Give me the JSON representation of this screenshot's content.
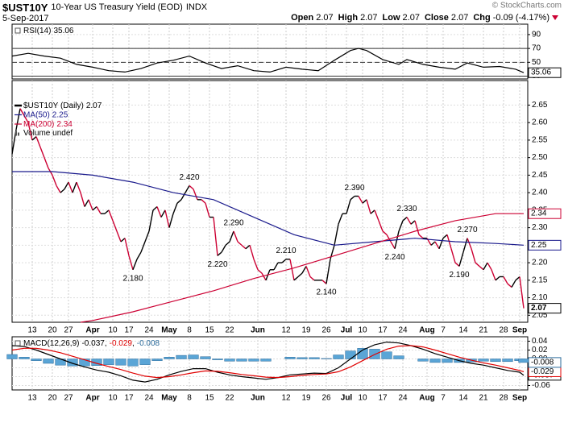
{
  "header": {
    "symbol": "$UST10Y",
    "name": "10-Year US Treasury Yield (EOD)",
    "exchange": "INDX",
    "date": "5-Sep-2017",
    "copyright": "© StockCharts.com",
    "quote": [
      {
        "label": "Open",
        "value": 2.07
      },
      {
        "label": "High",
        "value": 2.07
      },
      {
        "label": "Low",
        "value": 2.07
      },
      {
        "label": "Close",
        "value": 2.07
      },
      {
        "label": "Chg",
        "value": -0.09
      }
    ],
    "change_pct": "(-4.17%)"
  },
  "chart_data": [
    {
      "type": "line",
      "xlim": [
        0,
        128
      ],
      "ylim": [
        26,
        105
      ],
      "yticks": [
        90,
        70,
        50,
        30
      ],
      "levels": [
        70,
        50,
        30
      ],
      "grid": true,
      "series": [
        {
          "name": "RSI(14)",
          "color": "#000000",
          "x": [
            0,
            4,
            8,
            12,
            16,
            20,
            24,
            28,
            32,
            36,
            40,
            44,
            48,
            52,
            56,
            60,
            64,
            68,
            72,
            76,
            80,
            84,
            86,
            88,
            92,
            96,
            98,
            102,
            106,
            110,
            113,
            117,
            121,
            125,
            127
          ],
          "values": [
            59,
            63,
            59,
            56,
            47,
            43,
            38,
            36,
            41,
            49,
            53,
            59,
            49,
            41,
            45,
            38,
            36,
            43,
            40,
            38,
            53,
            67,
            70,
            67,
            54,
            47,
            54,
            47,
            43,
            40,
            49,
            43,
            44,
            40,
            35.06
          ]
        }
      ]
    },
    {
      "type": "line",
      "xlim": [
        0,
        128
      ],
      "ylim": [
        2.03,
        2.72
      ],
      "grid": true,
      "yticks": [
        2.65,
        {
          "value": 2.6,
          "label": "2.60"
        },
        2.55,
        {
          "value": 2.5,
          "label": "2.50"
        },
        2.45,
        {
          "value": 2.4,
          "label": "2.40"
        },
        2.35,
        {
          "value": 2.3,
          "label": "2.30"
        },
        2.25,
        {
          "value": 2.2,
          "label": "2.20"
        },
        2.15,
        {
          "value": 2.1,
          "label": "2.10"
        },
        2.05
      ],
      "xticks": [
        {
          "value": 5,
          "label": "13"
        },
        {
          "value": 10,
          "label": "20"
        },
        {
          "value": 14,
          "label": "27"
        },
        {
          "value": 20,
          "label": "Apr"
        },
        {
          "value": 25,
          "label": "10"
        },
        {
          "value": 29,
          "label": "17"
        },
        {
          "value": 34,
          "label": "24"
        },
        {
          "value": 39,
          "label": "May"
        },
        {
          "value": 44,
          "label": "8"
        },
        {
          "value": 49,
          "label": "15"
        },
        {
          "value": 54,
          "label": "22"
        },
        {
          "value": 61,
          "label": "Jun"
        },
        {
          "value": 68,
          "label": "12"
        },
        {
          "value": 73,
          "label": "19"
        },
        {
          "value": 78,
          "label": "26"
        },
        {
          "value": 83,
          "label": "Jul"
        },
        {
          "value": 87,
          "label": "10"
        },
        {
          "value": 92,
          "label": "17"
        },
        {
          "value": 97,
          "label": "24"
        },
        {
          "value": 103,
          "label": "Aug"
        },
        {
          "value": 107,
          "label": "7"
        },
        {
          "value": 112,
          "label": "14"
        },
        {
          "value": 117,
          "label": "21"
        },
        {
          "value": 122,
          "label": "28"
        },
        {
          "value": 126,
          "label": "Sep"
        }
      ],
      "note": "Volume undef",
      "series": [
        {
          "name": "$UST10Y (Daily)",
          "color": "#000000",
          "down_color": "#cc0033",
          "x": [
            0,
            1,
            2,
            3,
            4,
            5,
            6,
            7,
            8,
            9,
            10,
            11,
            12,
            13,
            14,
            15,
            16,
            17,
            18,
            19,
            20,
            21,
            22,
            23,
            24,
            25,
            26,
            27,
            28,
            29,
            30,
            31,
            32,
            33,
            34,
            35,
            36,
            37,
            38,
            39,
            40,
            41,
            42,
            43,
            44,
            45,
            46,
            47,
            48,
            49,
            50,
            51,
            52,
            53,
            54,
            55,
            56,
            57,
            58,
            59,
            60,
            61,
            62,
            63,
            64,
            65,
            66,
            67,
            68,
            69,
            70,
            71,
            72,
            73,
            74,
            75,
            76,
            77,
            78,
            79,
            80,
            81,
            82,
            83,
            84,
            85,
            86,
            87,
            88,
            89,
            90,
            91,
            92,
            93,
            94,
            95,
            96,
            97,
            98,
            99,
            100,
            101,
            102,
            103,
            104,
            105,
            106,
            107,
            108,
            109,
            110,
            111,
            112,
            113,
            114,
            115,
            116,
            117,
            118,
            119,
            120,
            121,
            122,
            123,
            124,
            125,
            126,
            127
          ],
          "values": [
            2.51,
            2.58,
            2.64,
            2.62,
            2.6,
            2.55,
            2.56,
            2.53,
            2.5,
            2.47,
            2.45,
            2.42,
            2.4,
            2.41,
            2.43,
            2.4,
            2.43,
            2.4,
            2.36,
            2.38,
            2.35,
            2.36,
            2.34,
            2.34,
            2.35,
            2.32,
            2.29,
            2.26,
            2.27,
            2.22,
            2.18,
            2.21,
            2.23,
            2.26,
            2.29,
            2.35,
            2.36,
            2.33,
            2.35,
            2.3,
            2.34,
            2.37,
            2.38,
            2.4,
            2.42,
            2.41,
            2.38,
            2.38,
            2.37,
            2.33,
            2.33,
            2.22,
            2.23,
            2.25,
            2.26,
            2.29,
            2.26,
            2.25,
            2.24,
            2.25,
            2.21,
            2.18,
            2.17,
            2.15,
            2.18,
            2.18,
            2.2,
            2.2,
            2.21,
            2.21,
            2.15,
            2.16,
            2.17,
            2.19,
            2.16,
            2.15,
            2.15,
            2.15,
            2.14,
            2.21,
            2.25,
            2.31,
            2.34,
            2.34,
            2.38,
            2.39,
            2.39,
            2.37,
            2.38,
            2.34,
            2.35,
            2.32,
            2.29,
            2.28,
            2.26,
            2.24,
            2.29,
            2.32,
            2.33,
            2.31,
            2.32,
            2.28,
            2.27,
            2.27,
            2.25,
            2.26,
            2.24,
            2.27,
            2.28,
            2.24,
            2.2,
            2.19,
            2.23,
            2.27,
            2.24,
            2.2,
            2.19,
            2.18,
            2.2,
            2.18,
            2.15,
            2.16,
            2.16,
            2.14,
            2.13,
            2.15,
            2.16,
            2.07
          ]
        },
        {
          "name": "MA(50)",
          "color": "#1a1a8c",
          "x": [
            0,
            10,
            20,
            30,
            40,
            50,
            60,
            70,
            80,
            90,
            100,
            110,
            120,
            127
          ],
          "values": [
            2.46,
            2.46,
            2.45,
            2.43,
            2.4,
            2.38,
            2.33,
            2.28,
            2.25,
            2.26,
            2.27,
            2.26,
            2.255,
            2.25
          ]
        },
        {
          "name": "MA(200)",
          "color": "#cc0033",
          "x": [
            17,
            20,
            30,
            40,
            50,
            60,
            70,
            80,
            90,
            100,
            110,
            120,
            127
          ],
          "values": [
            2.03,
            2.035,
            2.06,
            2.09,
            2.12,
            2.155,
            2.185,
            2.22,
            2.255,
            2.29,
            2.32,
            2.34,
            2.34
          ]
        }
      ],
      "annotations": [
        {
          "x": 44,
          "y": 2.42,
          "label": "2.420"
        },
        {
          "x": 30,
          "y": 2.18,
          "label": "2.180"
        },
        {
          "x": 55,
          "y": 2.29,
          "label": "2.290"
        },
        {
          "x": 51,
          "y": 2.22,
          "label": "2.220"
        },
        {
          "x": 68,
          "y": 2.21,
          "label": "2.210"
        },
        {
          "x": 78,
          "y": 2.14,
          "label": "2.140"
        },
        {
          "x": 85,
          "y": 2.39,
          "label": "2.390"
        },
        {
          "x": 98,
          "y": 2.33,
          "label": "2.330"
        },
        {
          "x": 95,
          "y": 2.24,
          "label": "2.240"
        },
        {
          "x": 113,
          "y": 2.27,
          "label": "2.270"
        },
        {
          "x": 111,
          "y": 2.19,
          "label": "2.190"
        }
      ]
    },
    {
      "type": "combo",
      "label": "MACD(12,26,9)",
      "separator": ",",
      "xlim": [
        0,
        128
      ],
      "ylim": [
        -0.07,
        0.05
      ],
      "grid": true,
      "yticks": [
        0.04,
        0.02,
        {
          "value": 0,
          "label": "0.00"
        },
        -0.02,
        -0.04,
        -0.06
      ],
      "xticks": [
        {
          "value": 5,
          "label": "13"
        },
        {
          "value": 10,
          "label": "20"
        },
        {
          "value": 14,
          "label": "27"
        },
        {
          "value": 20,
          "label": "Apr"
        },
        {
          "value": 25,
          "label": "10"
        },
        {
          "value": 29,
          "label": "17"
        },
        {
          "value": 34,
          "label": "24"
        },
        {
          "value": 39,
          "label": "May"
        },
        {
          "value": 44,
          "label": "8"
        },
        {
          "value": 49,
          "label": "15"
        },
        {
          "value": 54,
          "label": "22"
        },
        {
          "value": 61,
          "label": "Jun"
        },
        {
          "value": 68,
          "label": "12"
        },
        {
          "value": 73,
          "label": "19"
        },
        {
          "value": 78,
          "label": "26"
        },
        {
          "value": 83,
          "label": "Jul"
        },
        {
          "value": 87,
          "label": "10"
        },
        {
          "value": 92,
          "label": "17"
        },
        {
          "value": 97,
          "label": "24"
        },
        {
          "value": 103,
          "label": "Aug"
        },
        {
          "value": 107,
          "label": "7"
        },
        {
          "value": 112,
          "label": "14"
        },
        {
          "value": 117,
          "label": "21"
        },
        {
          "value": 122,
          "label": "28"
        },
        {
          "value": 126,
          "label": "Sep"
        }
      ],
      "x": [
        0,
        3,
        6,
        9,
        12,
        15,
        18,
        21,
        24,
        27,
        30,
        33,
        36,
        39,
        42,
        45,
        48,
        51,
        54,
        57,
        60,
        63,
        66,
        69,
        72,
        75,
        78,
        81,
        84,
        87,
        90,
        93,
        96,
        99,
        102,
        105,
        108,
        111,
        114,
        117,
        120,
        123,
        126,
        127
      ],
      "series": [
        {
          "mark": "line",
          "color": "#000000",
          "values": [
            0.03,
            0.028,
            0.02,
            0.01,
            0.0,
            -0.01,
            -0.018,
            -0.025,
            -0.03,
            -0.038,
            -0.048,
            -0.052,
            -0.046,
            -0.036,
            -0.028,
            -0.022,
            -0.022,
            -0.03,
            -0.036,
            -0.04,
            -0.043,
            -0.046,
            -0.042,
            -0.036,
            -0.034,
            -0.032,
            -0.033,
            -0.02,
            0.0,
            0.02,
            0.032,
            0.038,
            0.036,
            0.03,
            0.022,
            0.012,
            0.004,
            -0.004,
            -0.01,
            -0.014,
            -0.02,
            -0.026,
            -0.03,
            -0.037
          ]
        },
        {
          "mark": "line",
          "color": "#e00000",
          "values": [
            0.02,
            0.024,
            0.024,
            0.02,
            0.014,
            0.006,
            -0.002,
            -0.01,
            -0.017,
            -0.024,
            -0.032,
            -0.039,
            -0.042,
            -0.04,
            -0.036,
            -0.031,
            -0.027,
            -0.028,
            -0.031,
            -0.035,
            -0.038,
            -0.041,
            -0.042,
            -0.04,
            -0.037,
            -0.035,
            -0.034,
            -0.029,
            -0.018,
            -0.004,
            0.01,
            0.022,
            0.029,
            0.03,
            0.027,
            0.02,
            0.012,
            0.004,
            -0.003,
            -0.009,
            -0.014,
            -0.02,
            -0.026,
            -0.029
          ]
        },
        {
          "mark": "bar",
          "color": "#5aa5d6",
          "values": [
            0.01,
            0.004,
            -0.004,
            -0.01,
            -0.014,
            -0.016,
            -0.016,
            -0.015,
            -0.013,
            -0.014,
            -0.016,
            -0.013,
            -0.004,
            0.004,
            0.008,
            0.009,
            0.005,
            -0.002,
            -0.005,
            -0.005,
            -0.005,
            -0.005,
            0.0,
            0.004,
            0.003,
            0.003,
            0.001,
            0.009,
            0.018,
            0.024,
            0.022,
            0.016,
            0.007,
            0.0,
            -0.005,
            -0.008,
            -0.008,
            -0.008,
            -0.007,
            -0.005,
            -0.006,
            -0.006,
            -0.004,
            -0.008
          ]
        }
      ]
    }
  ]
}
